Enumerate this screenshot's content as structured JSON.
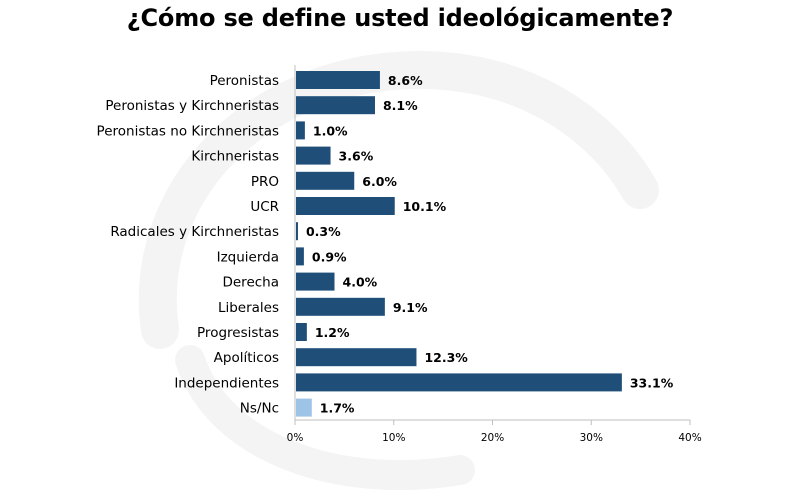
{
  "title": "¿Cómo se define usted ideológicamente?",
  "colors": {
    "bar": "#1F4E79",
    "bar_highlight": "#9DC3E6",
    "axis": "#BFBFBF",
    "watermark": "#F4F4F4"
  },
  "chart_data": {
    "type": "bar",
    "orientation": "horizontal",
    "title": "¿Cómo se define usted ideológicamente?",
    "categories": [
      "Peronistas",
      "Peronistas y Kirchneristas",
      "Peronistas no Kirchneristas",
      "Kirchneristas",
      "PRO",
      "UCR",
      "Radicales y Kirchneristas",
      "Izquierda",
      "Derecha",
      "Liberales",
      "Progresistas",
      "Apolíticos",
      "Independientes",
      "Ns/Nc"
    ],
    "values": [
      8.6,
      8.1,
      1.0,
      3.6,
      6.0,
      10.1,
      0.3,
      0.9,
      4.0,
      9.1,
      1.2,
      12.3,
      33.1,
      1.7
    ],
    "value_labels": [
      "8.6%",
      "8.1%",
      "1.0%",
      "3.6%",
      "6.0%",
      "10.1%",
      "0.3%",
      "0.9%",
      "4.0%",
      "9.1%",
      "1.2%",
      "12.3%",
      "33.1%",
      "1.7%"
    ],
    "highlighted_category": "Ns/Nc",
    "xlim": [
      0,
      40
    ],
    "xticks": [
      0,
      10,
      20,
      30,
      40
    ],
    "xtick_labels": [
      "0%",
      "10%",
      "20%",
      "30%",
      "40%"
    ],
    "xlabel": "",
    "ylabel": "",
    "grid": false,
    "legend": "none"
  }
}
